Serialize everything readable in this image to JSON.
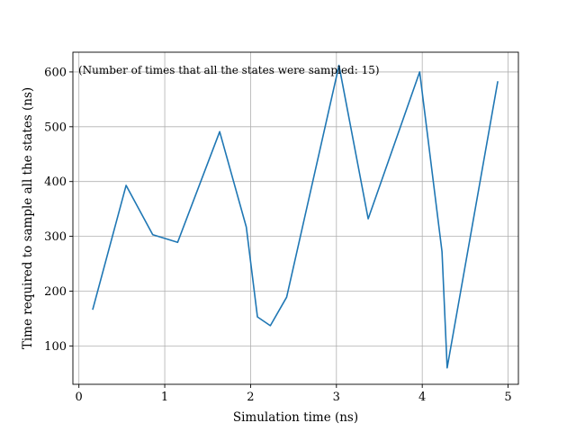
{
  "chart_data": {
    "type": "line",
    "title": "",
    "xlabel": "Simulation time (ns)",
    "ylabel": "Time required to sample all the states (ns)",
    "xlim": [
      -0.07,
      5.12
    ],
    "ylim": [
      30,
      636
    ],
    "xticks": [
      0,
      1,
      2,
      3,
      4,
      5
    ],
    "yticks": [
      100,
      200,
      300,
      400,
      500,
      600
    ],
    "grid": true,
    "annotation": "(Number of times that all the states were sampled: 15)",
    "line_color": "#1f77b4",
    "series": [
      {
        "x": [
          0.16,
          0.55,
          0.86,
          1.15,
          1.64,
          1.95,
          2.08,
          2.23,
          2.42,
          3.03,
          3.37,
          3.97,
          4.23,
          4.29,
          4.88
        ],
        "y": [
          166,
          393,
          303,
          289,
          491,
          317,
          153,
          137,
          189,
          612,
          332,
          600,
          272,
          60,
          583
        ]
      }
    ]
  }
}
